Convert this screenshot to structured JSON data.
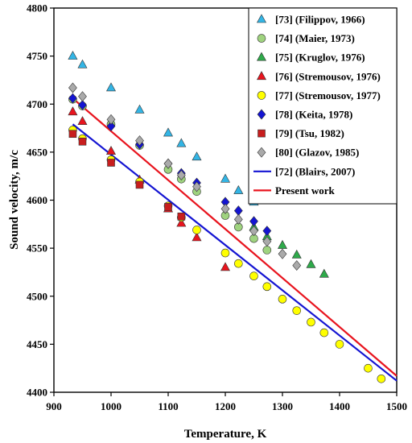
{
  "chart_data": {
    "type": "scatter",
    "xlabel": "Temperature,  K",
    "ylabel": "Sound  velocity, m/c",
    "xlim": [
      900,
      1500
    ],
    "ylim": [
      4400,
      4800
    ],
    "xticks": [
      900,
      1000,
      1100,
      1200,
      1300,
      1400,
      1500
    ],
    "yticks": [
      4400,
      4450,
      4500,
      4550,
      4600,
      4650,
      4700,
      4750,
      4800
    ],
    "grid": false,
    "legend_position": "top-right",
    "series": [
      {
        "name": "[73] (Filippov, 1966)",
        "marker": "triangle",
        "color": "#33b5e5",
        "x": [
          933,
          950,
          1000,
          1050,
          1100,
          1123,
          1150,
          1200,
          1223,
          1250
        ],
        "y": [
          4750,
          4741,
          4717,
          4694,
          4670,
          4659,
          4645,
          4622,
          4610,
          4598
        ]
      },
      {
        "name": "[74] (Maier, 1973)",
        "marker": "circle",
        "color": "#9fd37f",
        "x": [
          933,
          950,
          1000,
          1050,
          1100,
          1123,
          1150,
          1200,
          1223,
          1250,
          1273
        ],
        "y": [
          4705,
          4698,
          4679,
          4657,
          4632,
          4622,
          4609,
          4584,
          4572,
          4560,
          4548
        ]
      },
      {
        "name": "[75] (Kruglov, 1976)",
        "marker": "triangle",
        "color": "#2eaa4a",
        "x": [
          1250,
          1273,
          1300,
          1325,
          1350,
          1373
        ],
        "y": [
          4572,
          4562,
          4553,
          4543,
          4533,
          4523
        ]
      },
      {
        "name": "[76] (Stremousov, 1976)",
        "marker": "triangle",
        "color": "#e8141e",
        "x": [
          933,
          950,
          1000,
          1050,
          1100,
          1123,
          1150,
          1200
        ],
        "y": [
          4692,
          4682,
          4651,
          4621,
          4591,
          4576,
          4561,
          4530
        ]
      },
      {
        "name": "[77] (Stremousov, 1977)",
        "marker": "circle",
        "color": "#ffff00",
        "x": [
          933,
          950,
          1000,
          1050,
          1100,
          1123,
          1150,
          1200,
          1223,
          1250,
          1273,
          1300,
          1325,
          1350,
          1373,
          1400,
          1450,
          1473
        ],
        "y": [
          4673,
          4664,
          4642,
          4619,
          4594,
          4582,
          4569,
          4545,
          4534,
          4521,
          4510,
          4497,
          4485,
          4473,
          4462,
          4450,
          4425,
          4414
        ]
      },
      {
        "name": "[78] (Keita, 1978)",
        "marker": "diamond",
        "color": "#1414d2",
        "x": [
          933,
          950,
          1000,
          1050,
          1100,
          1123,
          1150,
          1200,
          1223,
          1250,
          1273
        ],
        "y": [
          4706,
          4699,
          4677,
          4658,
          4638,
          4628,
          4618,
          4598,
          4589,
          4578,
          4568
        ]
      },
      {
        "name": "[79] (Tsu, 1982)",
        "marker": "square",
        "color": "#c81e1e",
        "x": [
          933,
          950,
          1000,
          1050,
          1100,
          1123
        ],
        "y": [
          4669,
          4661,
          4639,
          4616,
          4593,
          4583
        ]
      },
      {
        "name": "[80] (Glazov, 1985)",
        "marker": "diamond",
        "color": "#aaaaaa",
        "x": [
          933,
          950,
          1000,
          1050,
          1100,
          1123,
          1150,
          1200,
          1223,
          1250,
          1273,
          1300,
          1325
        ],
        "y": [
          4717,
          4708,
          4684,
          4662,
          4638,
          4626,
          4614,
          4591,
          4580,
          4568,
          4557,
          4544,
          4532
        ]
      }
    ],
    "lines": [
      {
        "name": "[72] (Blairs, 2007)",
        "color": "#1414d2",
        "x": [
          933,
          1500
        ],
        "y": [
          4679,
          4412
        ]
      },
      {
        "name": "Present work",
        "color": "#e8141e",
        "x": [
          933,
          1500
        ],
        "y": [
          4706,
          4417
        ]
      }
    ]
  }
}
